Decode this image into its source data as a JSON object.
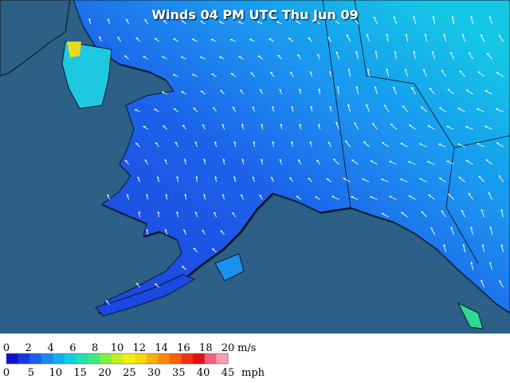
{
  "title": "Winds 04 PM UTC Thu Jun 09",
  "legend": {
    "ms_labels": [
      0,
      2,
      4,
      6,
      8,
      10,
      12,
      14,
      16,
      18,
      20
    ],
    "ms_unit": "m/s",
    "mph_labels": [
      0,
      5,
      10,
      15,
      20,
      25,
      30,
      35,
      40,
      45
    ],
    "mph_unit": "mph"
  }
}
